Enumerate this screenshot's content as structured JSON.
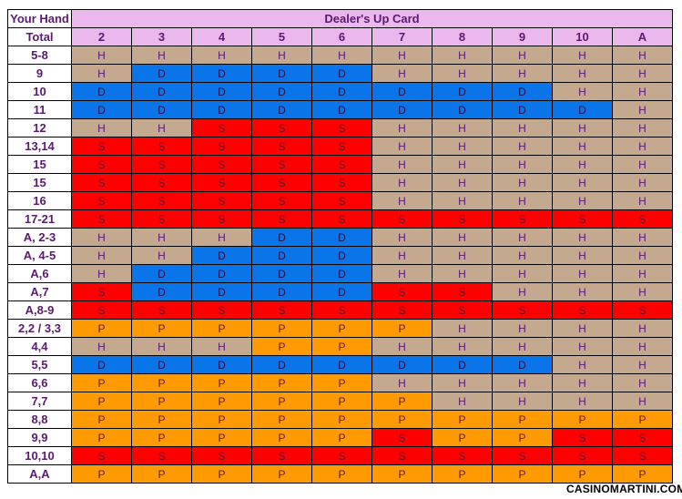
{
  "header": {
    "your_hand": "Your Hand",
    "total": "Total",
    "dealer_up_card": "Dealer's Up Card"
  },
  "up_cards": [
    "2",
    "3",
    "4",
    "5",
    "6",
    "7",
    "8",
    "9",
    "10",
    "A"
  ],
  "rows": [
    {
      "label": "5-8",
      "actions": [
        "H",
        "H",
        "H",
        "H",
        "H",
        "H",
        "H",
        "H",
        "H",
        "H"
      ]
    },
    {
      "label": "9",
      "actions": [
        "H",
        "D",
        "D",
        "D",
        "D",
        "H",
        "H",
        "H",
        "H",
        "H"
      ]
    },
    {
      "label": "10",
      "actions": [
        "D",
        "D",
        "D",
        "D",
        "D",
        "D",
        "D",
        "D",
        "H",
        "H"
      ]
    },
    {
      "label": "11",
      "actions": [
        "D",
        "D",
        "D",
        "D",
        "D",
        "D",
        "D",
        "D",
        "D",
        "H"
      ]
    },
    {
      "label": "12",
      "actions": [
        "H",
        "H",
        "S",
        "S",
        "S",
        "H",
        "H",
        "H",
        "H",
        "H"
      ]
    },
    {
      "label": "13,14",
      "actions": [
        "S",
        "S",
        "S",
        "S",
        "S",
        "H",
        "H",
        "H",
        "H",
        "H"
      ]
    },
    {
      "label": "15",
      "actions": [
        "S",
        "S",
        "S",
        "S",
        "S",
        "H",
        "H",
        "H",
        "H",
        "H"
      ]
    },
    {
      "label": "15",
      "actions": [
        "S",
        "S",
        "S",
        "S",
        "S",
        "H",
        "H",
        "H",
        "H",
        "H"
      ]
    },
    {
      "label": "16",
      "actions": [
        "S",
        "S",
        "S",
        "S",
        "S",
        "H",
        "H",
        "H",
        "H",
        "H"
      ]
    },
    {
      "label": "17-21",
      "actions": [
        "S",
        "S",
        "S",
        "S",
        "S",
        "S",
        "S",
        "S",
        "S",
        "S"
      ]
    },
    {
      "label": "A, 2-3",
      "actions": [
        "H",
        "H",
        "H",
        "D",
        "D",
        "H",
        "H",
        "H",
        "H",
        "H"
      ]
    },
    {
      "label": "A, 4-5",
      "actions": [
        "H",
        "H",
        "D",
        "D",
        "D",
        "H",
        "H",
        "H",
        "H",
        "H"
      ]
    },
    {
      "label": "A,6",
      "actions": [
        "H",
        "D",
        "D",
        "D",
        "D",
        "H",
        "H",
        "H",
        "H",
        "H"
      ]
    },
    {
      "label": "A,7",
      "actions": [
        "S",
        "D",
        "D",
        "D",
        "D",
        "S",
        "S",
        "H",
        "H",
        "H"
      ]
    },
    {
      "label": "A,8-9",
      "actions": [
        "S",
        "S",
        "S",
        "S",
        "S",
        "S",
        "S",
        "S",
        "S",
        "S"
      ]
    },
    {
      "label": "2,2 / 3,3",
      "actions": [
        "P",
        "P",
        "P",
        "P",
        "P",
        "P",
        "H",
        "H",
        "H",
        "H"
      ]
    },
    {
      "label": "4,4",
      "actions": [
        "H",
        "H",
        "H",
        "P",
        "P",
        "H",
        "H",
        "H",
        "H",
        "H"
      ]
    },
    {
      "label": "5,5",
      "actions": [
        "D",
        "D",
        "D",
        "D",
        "D",
        "D",
        "D",
        "D",
        "H",
        "H"
      ]
    },
    {
      "label": "6,6",
      "actions": [
        "P",
        "P",
        "P",
        "P",
        "P",
        "H",
        "H",
        "H",
        "H",
        "H"
      ]
    },
    {
      "label": "7,7",
      "actions": [
        "P",
        "P",
        "P",
        "P",
        "P",
        "P",
        "H",
        "H",
        "H",
        "H"
      ]
    },
    {
      "label": "8,8",
      "actions": [
        "P",
        "P",
        "P",
        "P",
        "P",
        "P",
        "P",
        "P",
        "P",
        "P"
      ]
    },
    {
      "label": "9,9",
      "actions": [
        "P",
        "P",
        "P",
        "P",
        "P",
        "S",
        "P",
        "P",
        "S",
        "S"
      ]
    },
    {
      "label": "10,10",
      "actions": [
        "S",
        "S",
        "S",
        "S",
        "S",
        "S",
        "S",
        "S",
        "S",
        "S"
      ]
    },
    {
      "label": "A,A",
      "actions": [
        "P",
        "P",
        "P",
        "P",
        "P",
        "P",
        "P",
        "P",
        "P",
        "P"
      ]
    }
  ],
  "colors": {
    "H": "#c4a98e",
    "D": "#0a75e8",
    "S": "#ff0000",
    "P": "#ff9a00",
    "header_bg": "#eab8ec",
    "text": "#5a1a6e"
  },
  "footer": "CASINOMARTINI.COM"
}
